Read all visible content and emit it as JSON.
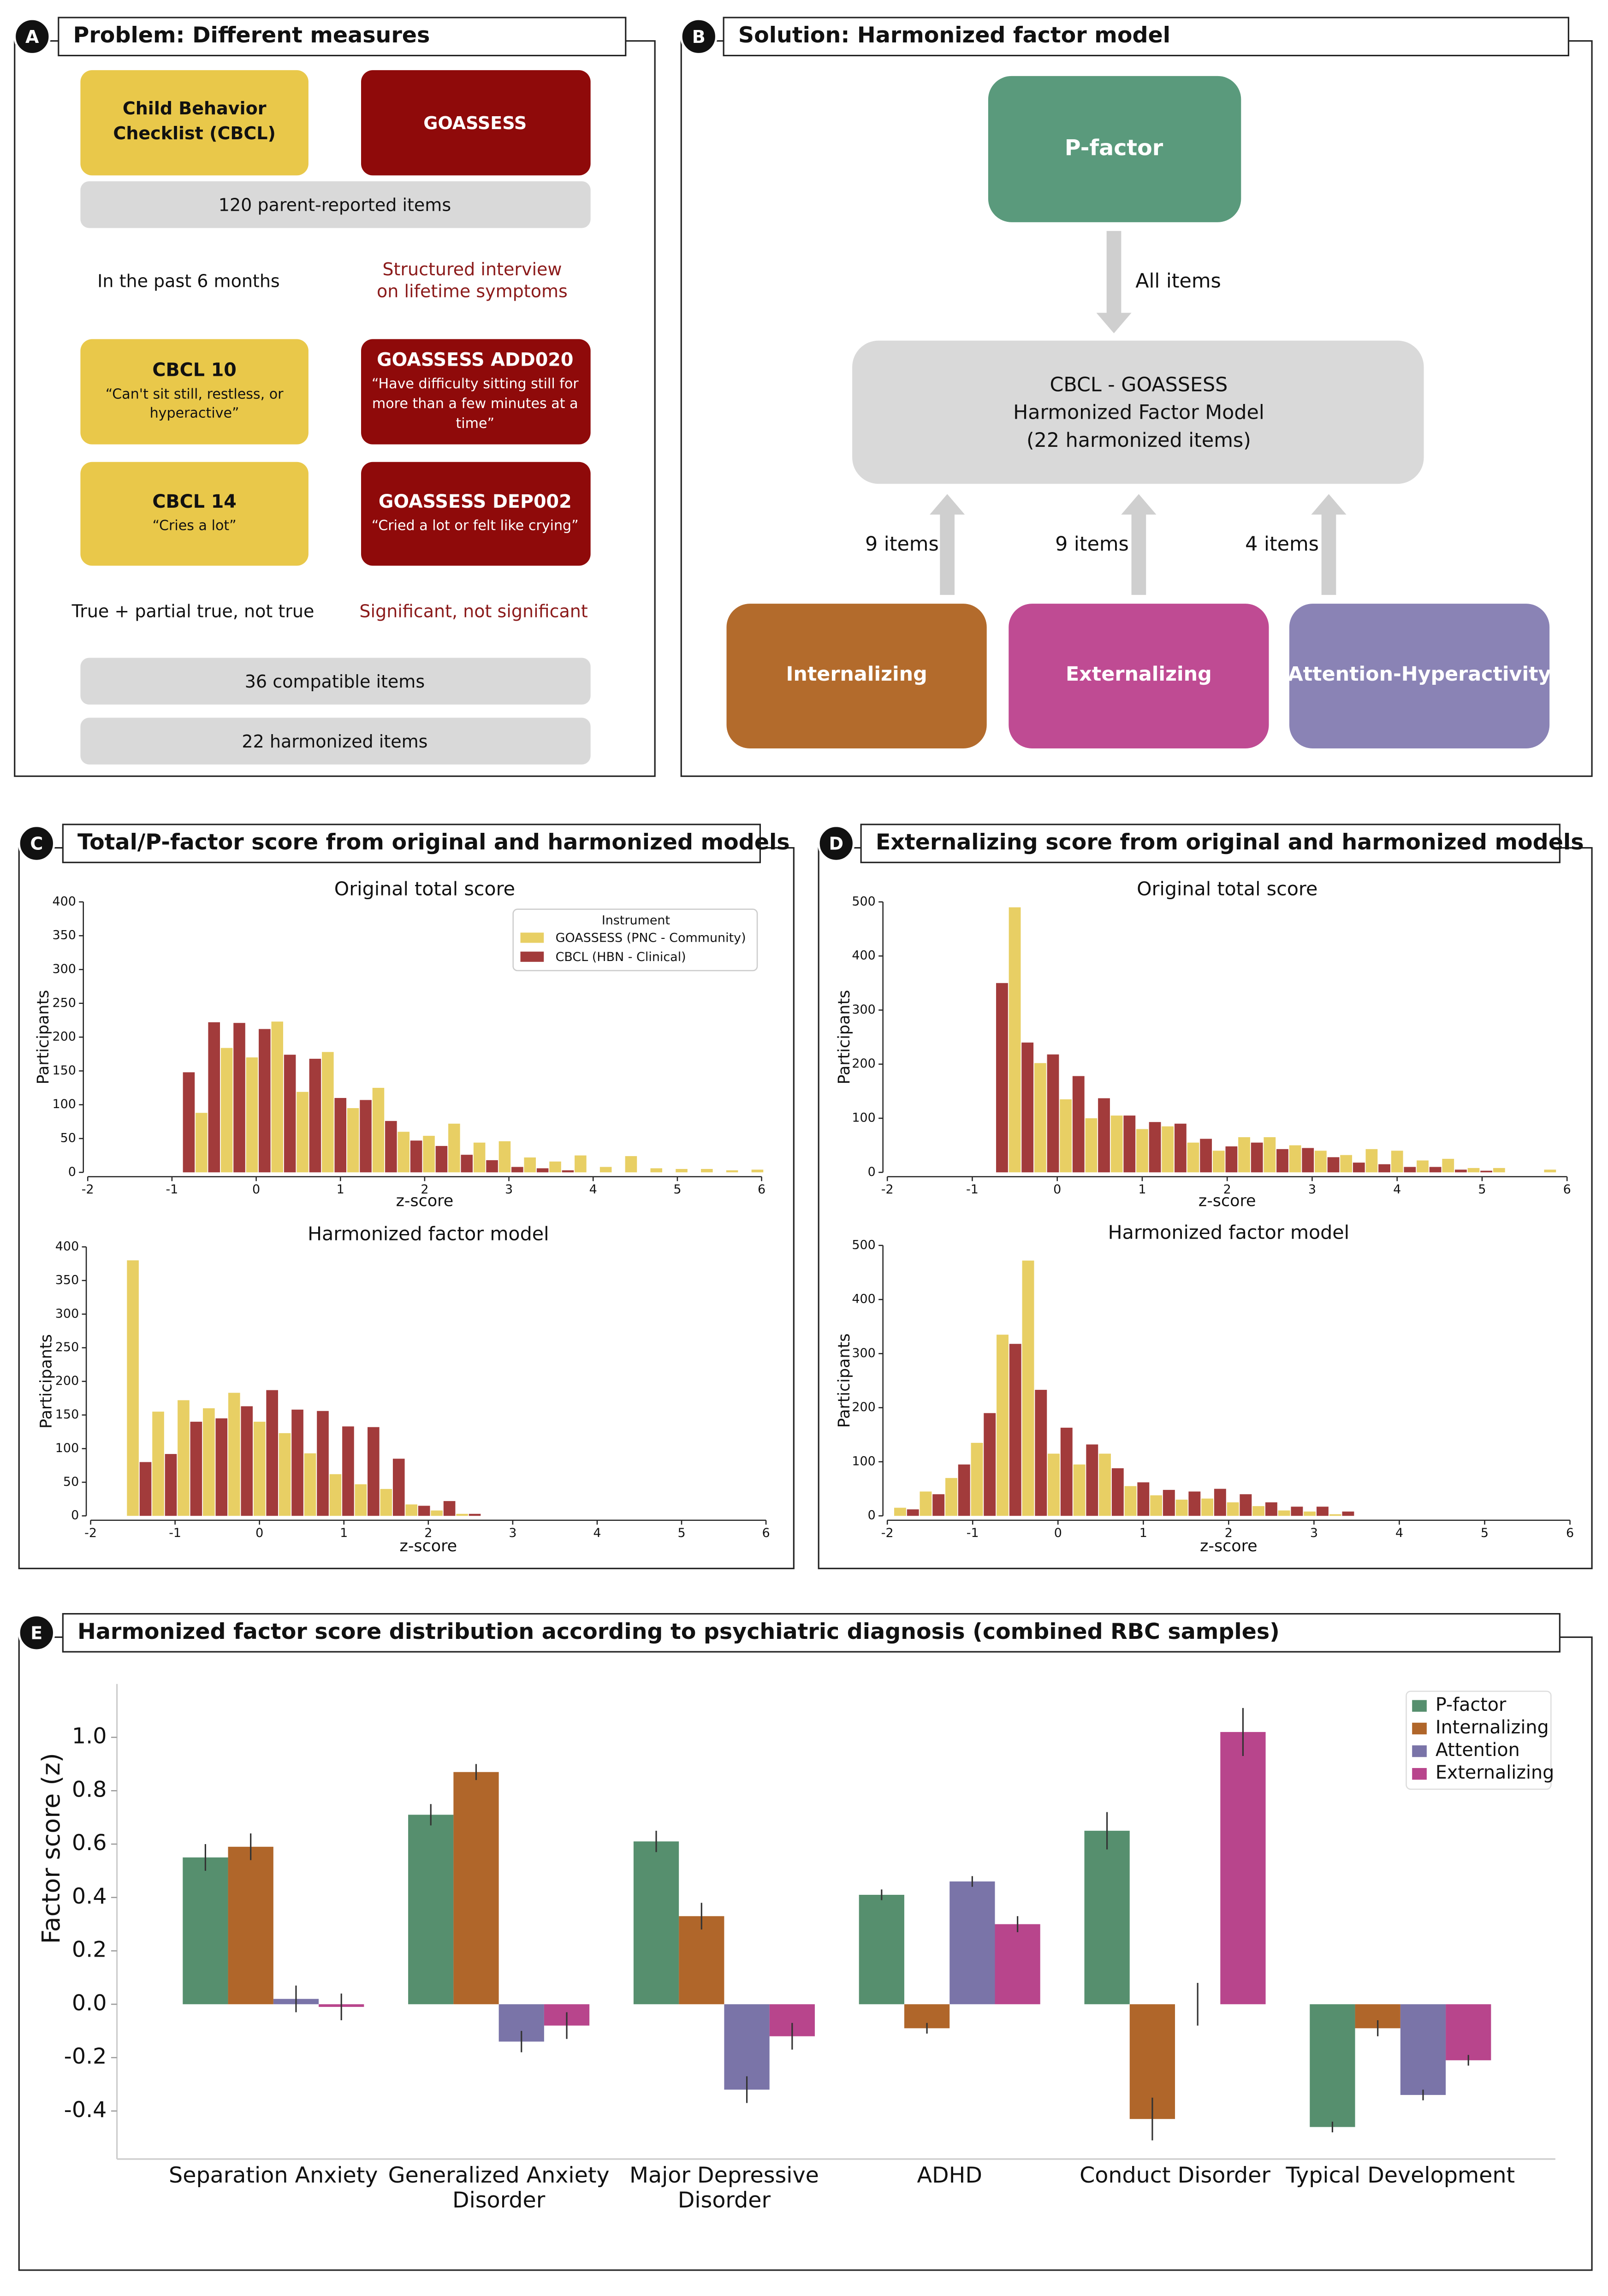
{
  "panels": [
    {
      "label": "A",
      "title": "Problem: Different measures"
    },
    {
      "label": "B",
      "title": "Solution: Harmonized factor model"
    },
    {
      "label": "C",
      "title": "Total/P-factor score from original and harmonized models"
    },
    {
      "label": "D",
      "title": "Externalizing score from original and harmonized models"
    },
    {
      "label": "E",
      "title": "Harmonized factor score distribution according to psychiatric diagnosis (combined RBC samples)"
    }
  ],
  "panel_a": {
    "cbcl": [
      "Child Behavior",
      "Checklist (CBCL)"
    ],
    "goassess": "GOASSESS",
    "items_total": "120 parent-reported items",
    "cbcl_timeframe": "In the past 6 months",
    "goassess_timeframe": [
      "Structured interview",
      "on lifetime symptoms"
    ],
    "cbcl_item_10": {
      "name": "CBCL 10",
      "text": [
        "“Can't sit still, restless, or",
        "hyperactive”"
      ]
    },
    "goassess_item_add020": {
      "name": "GOASSESS ADD020",
      "text": [
        "“Have difficulty sitting still for",
        "more than a few minutes at a",
        "time”"
      ]
    },
    "cbcl_item_14": {
      "name": "CBCL 14",
      "text": [
        "“Cries a lot”"
      ]
    },
    "goassess_item_dep002": {
      "name": "GOASSESS DEP002",
      "text": [
        "“Cried a lot or felt like crying”"
      ]
    },
    "cbcl_scale": "True + partial true, not true",
    "goassess_scale": "Significant, not significant",
    "items_compatible": "36 compatible items",
    "items_harmonized": "22 harmonized items"
  },
  "panel_b": {
    "p_factor": "P-factor",
    "all_items": "All items",
    "model": [
      "CBCL - GOASSESS",
      "Harmonized Factor Model",
      "(22 harmonized items)"
    ],
    "item_counts": [
      "9 items",
      "9 items",
      "4 items"
    ],
    "factors": [
      "Internalizing",
      "Externalizing",
      "Attention-Hyperactivity"
    ]
  },
  "chart_data": [
    {
      "type": "histogram",
      "title": "Original total score",
      "xlabel": "z-score",
      "ylabel": "Participants",
      "xlim": [
        -2,
        6
      ],
      "xticks": [
        -2,
        -1,
        0,
        1,
        2,
        3,
        4,
        5,
        6
      ],
      "ylim": [
        0,
        400
      ],
      "yticks": [
        0,
        50,
        100,
        150,
        200,
        250,
        300,
        350,
        400
      ],
      "legend_title": "Instrument",
      "legend": "upper right",
      "series": [
        {
          "name": "GOASSESS (PNC - Community)",
          "color": "#e8cf64",
          "x": [
            -0.65,
            -0.35,
            -0.05,
            0.25,
            0.55,
            0.85,
            1.15,
            1.45,
            1.75,
            2.05,
            2.35,
            2.65,
            2.95,
            3.25,
            3.55,
            3.85,
            4.15,
            4.45,
            4.75,
            5.05,
            5.35,
            5.65,
            5.95
          ],
          "values": [
            88,
            184,
            170,
            223,
            119,
            178,
            95,
            125,
            60,
            54,
            72,
            44,
            46,
            22,
            16,
            25,
            8,
            24,
            6,
            5,
            5,
            3,
            4
          ]
        },
        {
          "name": "CBCL (HBN - Clinical)",
          "color": "#a23b3b",
          "x": [
            -0.8,
            -0.5,
            -0.2,
            0.1,
            0.4,
            0.7,
            1.0,
            1.3,
            1.6,
            1.9,
            2.2,
            2.5,
            2.8,
            3.1,
            3.4,
            3.7
          ],
          "values": [
            148,
            222,
            221,
            212,
            174,
            168,
            110,
            107,
            76,
            47,
            39,
            26,
            18,
            8,
            6,
            3
          ]
        }
      ]
    },
    {
      "type": "histogram",
      "title": "Harmonized factor model",
      "xlabel": "z-score",
      "ylabel": "Participants",
      "xlim": [
        -2,
        6
      ],
      "xticks": [
        -2,
        -1,
        0,
        1,
        2,
        3,
        4,
        5,
        6
      ],
      "ylim": [
        0,
        400
      ],
      "yticks": [
        0,
        50,
        100,
        150,
        200,
        250,
        300,
        350,
        400
      ],
      "series": [
        {
          "color": "#e8cf64",
          "x": [
            -1.5,
            -1.2,
            -0.9,
            -0.6,
            -0.3,
            0,
            0.3,
            0.6,
            0.9,
            1.2,
            1.5,
            1.8,
            2.1,
            2.4
          ],
          "values": [
            380,
            155,
            172,
            160,
            183,
            140,
            123,
            93,
            62,
            47,
            40,
            17,
            8,
            3
          ]
        },
        {
          "color": "#a23b3b",
          "x": [
            -1.35,
            -1.05,
            -0.75,
            -0.45,
            -0.15,
            0.15,
            0.45,
            0.75,
            1.05,
            1.35,
            1.65,
            1.95,
            2.25,
            2.55
          ],
          "values": [
            80,
            92,
            140,
            145,
            163,
            187,
            158,
            156,
            133,
            132,
            85,
            15,
            22,
            3
          ]
        }
      ]
    },
    {
      "type": "histogram",
      "title": "Original total score",
      "xlabel": "z-score",
      "ylabel": "Participants",
      "xlim": [
        -2,
        6
      ],
      "xticks": [
        -2,
        -1,
        0,
        1,
        2,
        3,
        4,
        5,
        6
      ],
      "ylim": [
        0,
        500
      ],
      "yticks": [
        0,
        100,
        200,
        300,
        400,
        500
      ],
      "series": [
        {
          "color": "#e8cf64",
          "x": [
            -0.5,
            -0.2,
            0.1,
            0.4,
            0.7,
            1.0,
            1.3,
            1.6,
            1.9,
            2.2,
            2.5,
            2.8,
            3.1,
            3.4,
            3.7,
            4.0,
            4.3,
            4.6,
            4.9,
            5.2,
            5.8
          ],
          "values": [
            490,
            202,
            135,
            100,
            105,
            80,
            85,
            55,
            40,
            65,
            65,
            50,
            40,
            32,
            43,
            40,
            22,
            25,
            8,
            8,
            5
          ]
        },
        {
          "color": "#a23b3b",
          "x": [
            -0.65,
            -0.35,
            -0.05,
            0.25,
            0.55,
            0.85,
            1.15,
            1.45,
            1.75,
            2.05,
            2.35,
            2.65,
            2.95,
            3.25,
            3.55,
            3.85,
            4.15,
            4.45,
            4.75,
            5.05
          ],
          "values": [
            350,
            240,
            218,
            178,
            137,
            105,
            93,
            90,
            62,
            48,
            55,
            43,
            45,
            28,
            18,
            15,
            10,
            10,
            5,
            3
          ]
        }
      ]
    },
    {
      "type": "histogram",
      "title": "Harmonized factor model",
      "xlabel": "z-score",
      "ylabel": "Participants",
      "xlim": [
        -2,
        6
      ],
      "xticks": [
        -2,
        -1,
        0,
        1,
        2,
        3,
        4,
        5,
        6
      ],
      "ylim": [
        0,
        500
      ],
      "yticks": [
        0,
        100,
        200,
        300,
        400,
        500
      ],
      "series": [
        {
          "color": "#e8cf64",
          "x": [
            -1.85,
            -1.55,
            -1.25,
            -0.95,
            -0.65,
            -0.35,
            -0.05,
            0.25,
            0.55,
            0.85,
            1.15,
            1.45,
            1.75,
            2.05,
            2.35,
            2.65,
            2.95,
            3.25
          ],
          "values": [
            15,
            45,
            70,
            135,
            335,
            472,
            115,
            95,
            115,
            55,
            38,
            30,
            32,
            25,
            18,
            10,
            8,
            3
          ]
        },
        {
          "color": "#a23b3b",
          "x": [
            -1.7,
            -1.4,
            -1.1,
            -0.8,
            -0.5,
            -0.2,
            0.1,
            0.4,
            0.7,
            1.0,
            1.3,
            1.6,
            1.9,
            2.2,
            2.5,
            2.8,
            3.1,
            3.4
          ],
          "values": [
            12,
            40,
            95,
            190,
            318,
            233,
            163,
            132,
            88,
            62,
            48,
            45,
            50,
            40,
            25,
            17,
            17,
            8
          ]
        }
      ]
    },
    {
      "type": "bar",
      "ylabel": "Factor score (z)",
      "categories": [
        "Separation Anxiety",
        "Generalized Anxiety Disorder",
        "Major Depressive Disorder",
        "ADHD",
        "Conduct Disorder",
        "Typical Development"
      ],
      "ylim": [
        -0.58,
        1.2
      ],
      "yticks": [
        -0.4,
        -0.2,
        {
          "value": 0,
          "label": "0.0"
        },
        0.2,
        0.4,
        0.6,
        0.8,
        {
          "value": 1,
          "label": "1.0"
        }
      ],
      "legend": "upper right",
      "series": [
        {
          "name": "P-factor",
          "color": "#568f6e",
          "values": [
            0.55,
            0.71,
            0.61,
            0.41,
            0.65,
            -0.46
          ],
          "errors": [
            0.05,
            0.04,
            0.04,
            0.02,
            0.07,
            0.02
          ]
        },
        {
          "name": "Internalizing",
          "color": "#b0662a",
          "values": [
            0.59,
            0.87,
            0.33,
            -0.09,
            -0.43,
            -0.09
          ],
          "errors": [
            0.05,
            0.03,
            0.05,
            0.02,
            0.08,
            0.03
          ]
        },
        {
          "name": "Attention",
          "color": "#7a74a8",
          "values": [
            0.02,
            -0.14,
            -0.32,
            0.46,
            0,
            -0.34
          ],
          "errors": [
            0.05,
            0.04,
            0.05,
            0.02,
            0.08,
            0.02
          ]
        },
        {
          "name": "Externalizing",
          "color": "#b8458c",
          "values": [
            -0.01,
            -0.08,
            -0.12,
            0.3,
            1.02,
            -0.21
          ],
          "errors": [
            0.05,
            0.05,
            0.05,
            0.03,
            0.09,
            0.02
          ]
        }
      ]
    }
  ]
}
